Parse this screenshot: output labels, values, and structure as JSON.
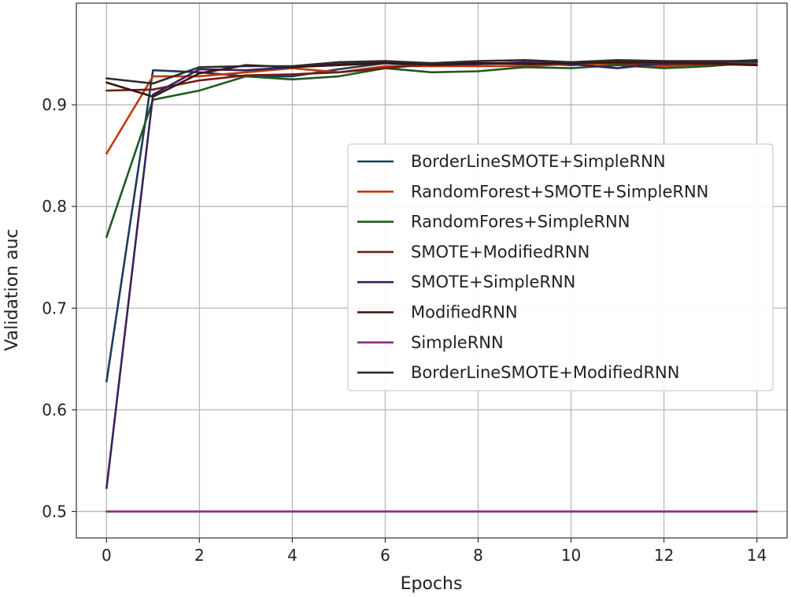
{
  "chart_data": {
    "type": "line",
    "title": "",
    "xlabel": "Epochs",
    "ylabel": "Validation auc",
    "xlim": [
      -0.65,
      14.65
    ],
    "ylim": [
      0.474,
      1.0
    ],
    "xticks": [
      0,
      2,
      4,
      6,
      8,
      10,
      12,
      14
    ],
    "yticks": [
      0.5,
      0.6,
      0.7,
      0.8,
      0.9
    ],
    "ytick_labels": [
      "0.5",
      "0.6",
      "0.7",
      "0.8",
      "0.9"
    ],
    "grid": true,
    "legend_position": "center-right",
    "x": [
      0,
      1,
      2,
      3,
      4,
      5,
      6,
      7,
      8,
      9,
      10,
      11,
      12,
      13,
      14
    ],
    "series": [
      {
        "name": "BorderLineSMOTE+SimpleRNN",
        "color": "#1f3a5f",
        "values": [
          0.628,
          0.934,
          0.932,
          0.928,
          0.928,
          0.935,
          0.941,
          0.938,
          0.94,
          0.941,
          0.939,
          0.942,
          0.94,
          0.941,
          0.942
        ]
      },
      {
        "name": "RandomForest+SMOTE+SimpleRNN",
        "color": "#c0390a",
        "values": [
          0.852,
          0.928,
          0.928,
          0.932,
          0.936,
          0.932,
          0.938,
          0.938,
          0.938,
          0.938,
          0.94,
          0.94,
          0.938,
          0.94,
          0.941
        ]
      },
      {
        "name": "RandomFores+SimpleRNN",
        "color": "#1e5a1e",
        "values": [
          0.77,
          0.905,
          0.914,
          0.928,
          0.925,
          0.928,
          0.936,
          0.932,
          0.933,
          0.937,
          0.936,
          0.939,
          0.936,
          0.938,
          0.942
        ]
      },
      {
        "name": "SMOTE+ModifiedRNN",
        "color": "#6e1f14",
        "values": [
          0.914,
          0.915,
          0.924,
          0.929,
          0.93,
          0.932,
          0.936,
          0.94,
          0.941,
          0.941,
          0.942,
          0.941,
          0.94,
          0.94,
          0.939
        ]
      },
      {
        "name": "SMOTE+SimpleRNN",
        "color": "#3a1f5c",
        "values": [
          0.523,
          0.91,
          0.935,
          0.934,
          0.937,
          0.94,
          0.942,
          0.939,
          0.94,
          0.942,
          0.94,
          0.936,
          0.941,
          0.942,
          0.944
        ]
      },
      {
        "name": "ModifiedRNN",
        "color": "#3a1410",
        "values": [
          0.922,
          0.908,
          0.931,
          0.939,
          0.937,
          0.939,
          0.941,
          0.94,
          0.941,
          0.94,
          0.941,
          0.942,
          0.942,
          0.941,
          0.939
        ]
      },
      {
        "name": "SimpleRNN",
        "color": "#8e2a7e",
        "values": [
          0.5,
          0.5,
          0.5,
          0.5,
          0.5,
          0.5,
          0.5,
          0.5,
          0.5,
          0.5,
          0.5,
          0.5,
          0.5,
          0.5,
          0.5
        ]
      },
      {
        "name": "BorderLineSMOTE+ModifiedRNN",
        "color": "#2b2b2b",
        "values": [
          0.926,
          0.921,
          0.937,
          0.938,
          0.938,
          0.942,
          0.943,
          0.941,
          0.943,
          0.944,
          0.942,
          0.944,
          0.943,
          0.943,
          0.943
        ]
      }
    ]
  }
}
